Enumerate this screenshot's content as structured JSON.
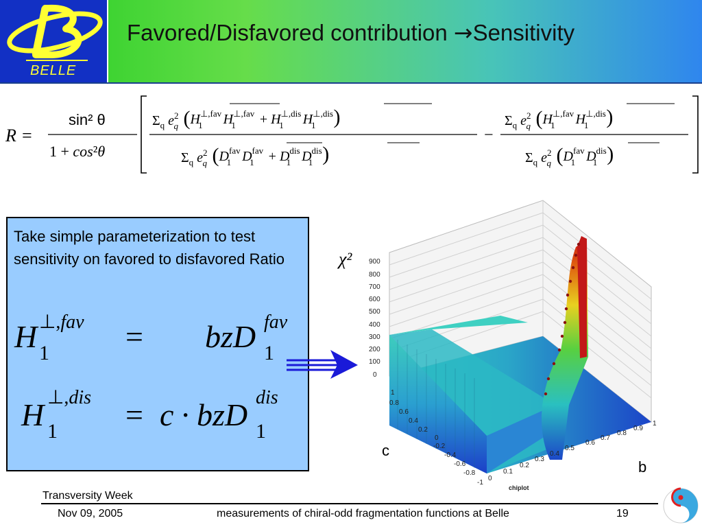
{
  "logo": {
    "letter": "B",
    "text": "BELLE"
  },
  "header": {
    "title_main": "Favored/Disfavored  contribution ",
    "title_arrow": "→",
    "title_tail": "Sensitivity"
  },
  "main_formula": {
    "lhs": "R =",
    "prefactor_num": "sin² θ",
    "prefactor_den": "1 + cos²θ",
    "term1_num": "Σq eq² ( H1⊥,fav H̅1⊥,fav + H1⊥,dis H̅1⊥,dis )",
    "term1_den": "Σq eq² ( D1fav D̅1fav + D1dis D̅1dis )",
    "minus": "−",
    "term2_num": "Σq eq² ( H1⊥,fav H̅1⊥,dis )",
    "term2_den": "Σq eq² ( D1fav D̅1dis )"
  },
  "box": {
    "text": "Take simple parameterization to test sensitivity on favored to disfavored Ratio",
    "eq_fav": "H1⊥,fav = bzD1fav",
    "eq_dis": "H1⊥,dis = c · bzD1dis"
  },
  "plot": {
    "z_axis_label": "χ²",
    "z_ticks": [
      "900",
      "800",
      "700",
      "600",
      "500",
      "400",
      "300",
      "200",
      "100",
      "0"
    ],
    "c_ticks": [
      "1",
      "0.8",
      "0.6",
      "0.4",
      "0.2",
      "0",
      "-0.2",
      "-0.4",
      "-0.6",
      "-0.8",
      "-1"
    ],
    "b_ticks": [
      "0",
      "0.1",
      "0.2",
      "0.3",
      "0.4",
      "0.5",
      "0.6",
      "0.7",
      "0.8",
      "0.9",
      "1"
    ],
    "x_axis_title": "chiplot",
    "c_label": "c",
    "b_label": "b",
    "colors": {
      "low": "#1f4fd0",
      "mid": "#29c2b3",
      "high": "#d41f1f"
    }
  },
  "footer": {
    "event": "Transversity Week",
    "date": "Nov 09, 2005",
    "description": "measurements of chiral-odd fragmentation functions at Belle",
    "page": "19"
  }
}
